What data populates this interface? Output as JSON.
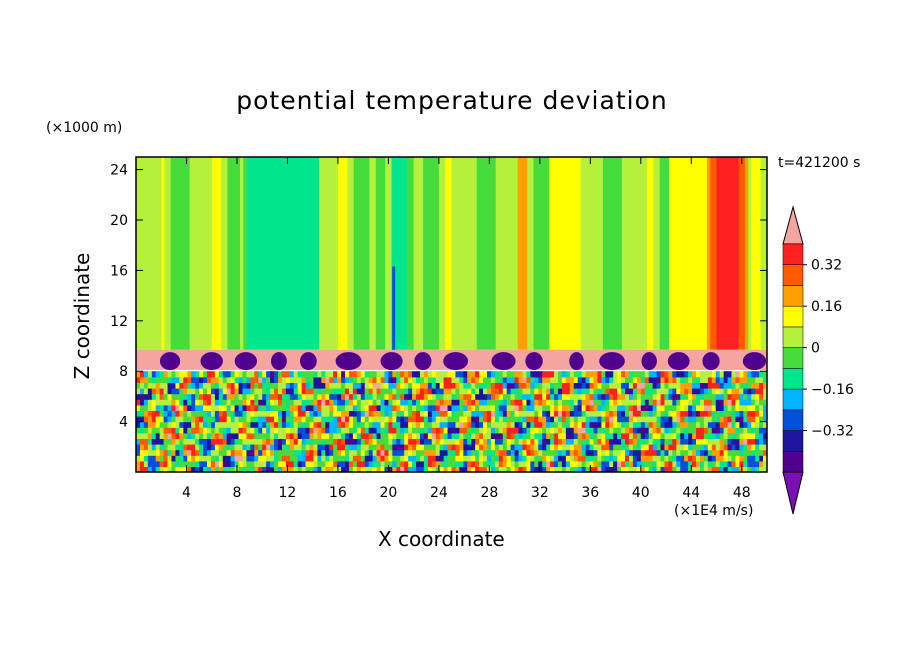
{
  "chart_data": {
    "type": "heatmap",
    "title": "potential temperature deviation",
    "xlabel": "X coordinate",
    "ylabel": "Z coordinate",
    "x_unit": "(×1E4 m/s)",
    "y_unit": "(×1000 m)",
    "time_label": "t=421200 s",
    "xlim": [
      0,
      50
    ],
    "ylim": [
      0,
      25
    ],
    "x_ticks": [
      4,
      8,
      12,
      16,
      20,
      24,
      28,
      32,
      36,
      40,
      44,
      48
    ],
    "y_ticks": [
      4,
      8,
      12,
      16,
      20,
      24
    ],
    "colorbar": {
      "levels": [
        -0.48,
        -0.4,
        -0.32,
        -0.24,
        -0.16,
        -0.08,
        0,
        0.08,
        0.16,
        0.24,
        0.32,
        0.4
      ],
      "tick_values": [
        0.32,
        0.16,
        0,
        -0.16,
        -0.32
      ],
      "tick_labels": [
        "0.32",
        "0.16",
        "0",
        "−0.16",
        "−0.32"
      ],
      "colors": [
        "#7a10b4",
        "#50008c",
        "#1e14a0",
        "#0050dc",
        "#00b4ff",
        "#00e68c",
        "#46dc3c",
        "#b4f03c",
        "#ffff00",
        "#ffa000",
        "#ff5a00",
        "#ff2020",
        "#f5a5a0"
      ],
      "extend": "both"
    },
    "bands": [
      {
        "z_range": [
          10,
          25
        ],
        "description_value": "mostly green (0 to 0.08), cyan columns near x 9-15 and 20-21, red/orange column near x 46-48"
      },
      {
        "z_range": [
          8,
          9.7
        ],
        "value": 0.48,
        "note": "pink layer with purple patches"
      },
      {
        "z_range": [
          0,
          8
        ],
        "value_range": [
          -0.48,
          0.48
        ],
        "note": "turbulent mixed layer"
      }
    ]
  }
}
